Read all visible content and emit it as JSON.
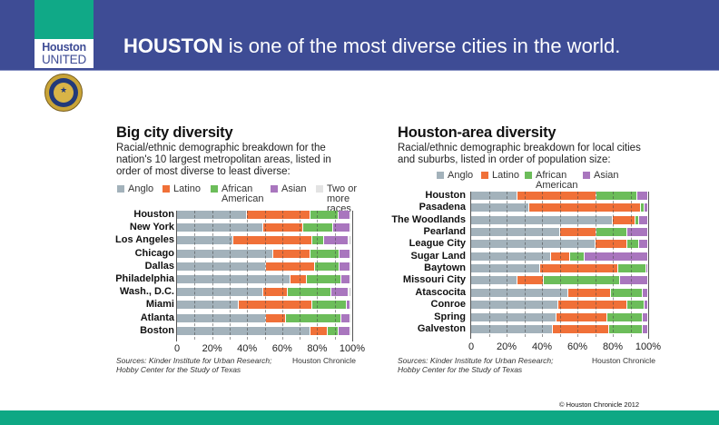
{
  "header": {
    "logo_line1": "Houston",
    "logo_line2": "UNITED",
    "headline_bold": "HOUSTON",
    "headline_rest": " is one of the most diverse cities in the world."
  },
  "colors": {
    "header_bg": "#3e4c95",
    "logo_green": "#10a987",
    "footer_green": "#0ea884",
    "anglo": "#a3b2bb",
    "latino": "#f07038",
    "african_american": "#6cbd5a",
    "asian": "#a976be",
    "two_or_more": "#e3e3e3"
  },
  "footer": {
    "copyright": "© Houston Chronicle 2012"
  },
  "chart_data": [
    {
      "type": "bar",
      "orientation": "horizontal",
      "stacked": true,
      "title": "Big city diversity",
      "subtitle": "Racial/ethnic demographic breakdown for the nation's 10 largest metropolitan areas, listed in order of most diverse to least diverse:",
      "legend": [
        "Anglo",
        "Latino",
        "African American",
        "Asian",
        "Two or more races"
      ],
      "legend_position": "top",
      "categories": [
        "Houston",
        "New York",
        "Los Angeles",
        "Chicago",
        "Dallas",
        "Philadelphia",
        "Wash., D.C.",
        "Miami",
        "Atlanta",
        "Boston"
      ],
      "series": [
        {
          "name": "Anglo",
          "values": [
            40,
            49,
            32,
            55,
            51,
            65,
            49,
            35,
            51,
            76
          ]
        },
        {
          "name": "Latino",
          "values": [
            36,
            23,
            45,
            21,
            28,
            9,
            14,
            42,
            11,
            10
          ]
        },
        {
          "name": "African American",
          "values": [
            16,
            17,
            7,
            17,
            14,
            20,
            25,
            20,
            32,
            6
          ]
        },
        {
          "name": "Asian",
          "values": [
            7,
            10,
            14,
            6,
            6,
            5,
            10,
            2,
            5,
            7
          ]
        },
        {
          "name": "Two or more races",
          "values": [
            1,
            1,
            2,
            1,
            1,
            1,
            2,
            1,
            1,
            1
          ]
        }
      ],
      "xlim": [
        0,
        100
      ],
      "xticks": [
        "0",
        "20%",
        "40%",
        "60%",
        "80%",
        "100%"
      ],
      "grid": true,
      "source": "Sources: Kinder Institute for Urban Research; Hobby Center for the Study of Texas",
      "source_line1": "Sources: Kinder Institute for Urban Research;",
      "source_line2": "Hobby Center for the Study of Texas",
      "credit": "Houston Chronicle"
    },
    {
      "type": "bar",
      "orientation": "horizontal",
      "stacked": true,
      "title": "Houston-area diversity",
      "subtitle": "Racial/ethnic demographic breakdown for local cities and suburbs, listed in order of population size:",
      "legend": [
        "Anglo",
        "Latino",
        "African American",
        "Asian"
      ],
      "legend_position": "top",
      "categories": [
        "Houston",
        "Pasadena",
        "The Woodlands",
        "Pearland",
        "League City",
        "Sugar Land",
        "Baytown",
        "Missouri City",
        "Atascocita",
        "Conroe",
        "Spring",
        "Galveston"
      ],
      "series": [
        {
          "name": "Anglo",
          "values": [
            26,
            33,
            80,
            50,
            70,
            45,
            39,
            26,
            55,
            49,
            48,
            46
          ]
        },
        {
          "name": "Latino",
          "values": [
            45,
            63,
            13,
            21,
            18,
            11,
            44,
            15,
            24,
            39,
            29,
            32
          ]
        },
        {
          "name": "African American",
          "values": [
            23,
            2,
            2,
            17,
            7,
            8,
            16,
            43,
            18,
            10,
            20,
            19
          ]
        },
        {
          "name": "Asian",
          "values": [
            6,
            2,
            5,
            12,
            5,
            36,
            1,
            16,
            3,
            2,
            3,
            3
          ]
        }
      ],
      "xlim": [
        0,
        100
      ],
      "xticks": [
        "0",
        "20%",
        "40%",
        "60%",
        "80%",
        "100%"
      ],
      "grid": true,
      "source": "Sources: Kinder Institute for Urban Research; Hobby Center for the Study of Texas",
      "source_line1": "Sources: Kinder Institute for Urban Research;",
      "source_line2": "Hobby Center for the Study of Texas",
      "credit": "Houston Chronicle"
    }
  ]
}
